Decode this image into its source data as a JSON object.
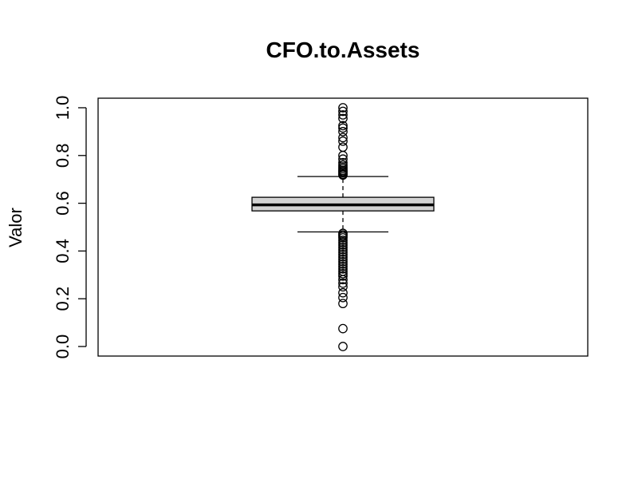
{
  "chart_data": {
    "type": "box",
    "title": "CFO.to.Assets",
    "xlabel": "",
    "ylabel": "Valor",
    "ylim": [
      -0.04,
      1.04
    ],
    "yticks": [
      0.0,
      0.2,
      0.4,
      0.6,
      0.8,
      1.0
    ],
    "ytick_labels": [
      "0.0",
      "0.2",
      "0.4",
      "0.6",
      "0.8",
      "1.0"
    ],
    "grid": false,
    "box": {
      "q1": 0.568,
      "median": 0.593,
      "q3": 0.625,
      "whisker_low": 0.48,
      "whisker_high": 0.712
    },
    "outliers": [
      0.0,
      0.075,
      0.18,
      0.205,
      0.225,
      0.25,
      0.265,
      0.28,
      0.295,
      0.305,
      0.315,
      0.325,
      0.335,
      0.345,
      0.355,
      0.365,
      0.375,
      0.385,
      0.395,
      0.405,
      0.415,
      0.425,
      0.435,
      0.445,
      0.455,
      0.462,
      0.468,
      0.474,
      0.718,
      0.722,
      0.728,
      0.733,
      0.738,
      0.745,
      0.752,
      0.76,
      0.77,
      0.785,
      0.8,
      0.835,
      0.86,
      0.875,
      0.9,
      0.915,
      0.925,
      0.955,
      0.97,
      0.985,
      1.0
    ],
    "colors": {
      "box_fill": "#d3d3d3",
      "stroke": "#000000"
    }
  }
}
